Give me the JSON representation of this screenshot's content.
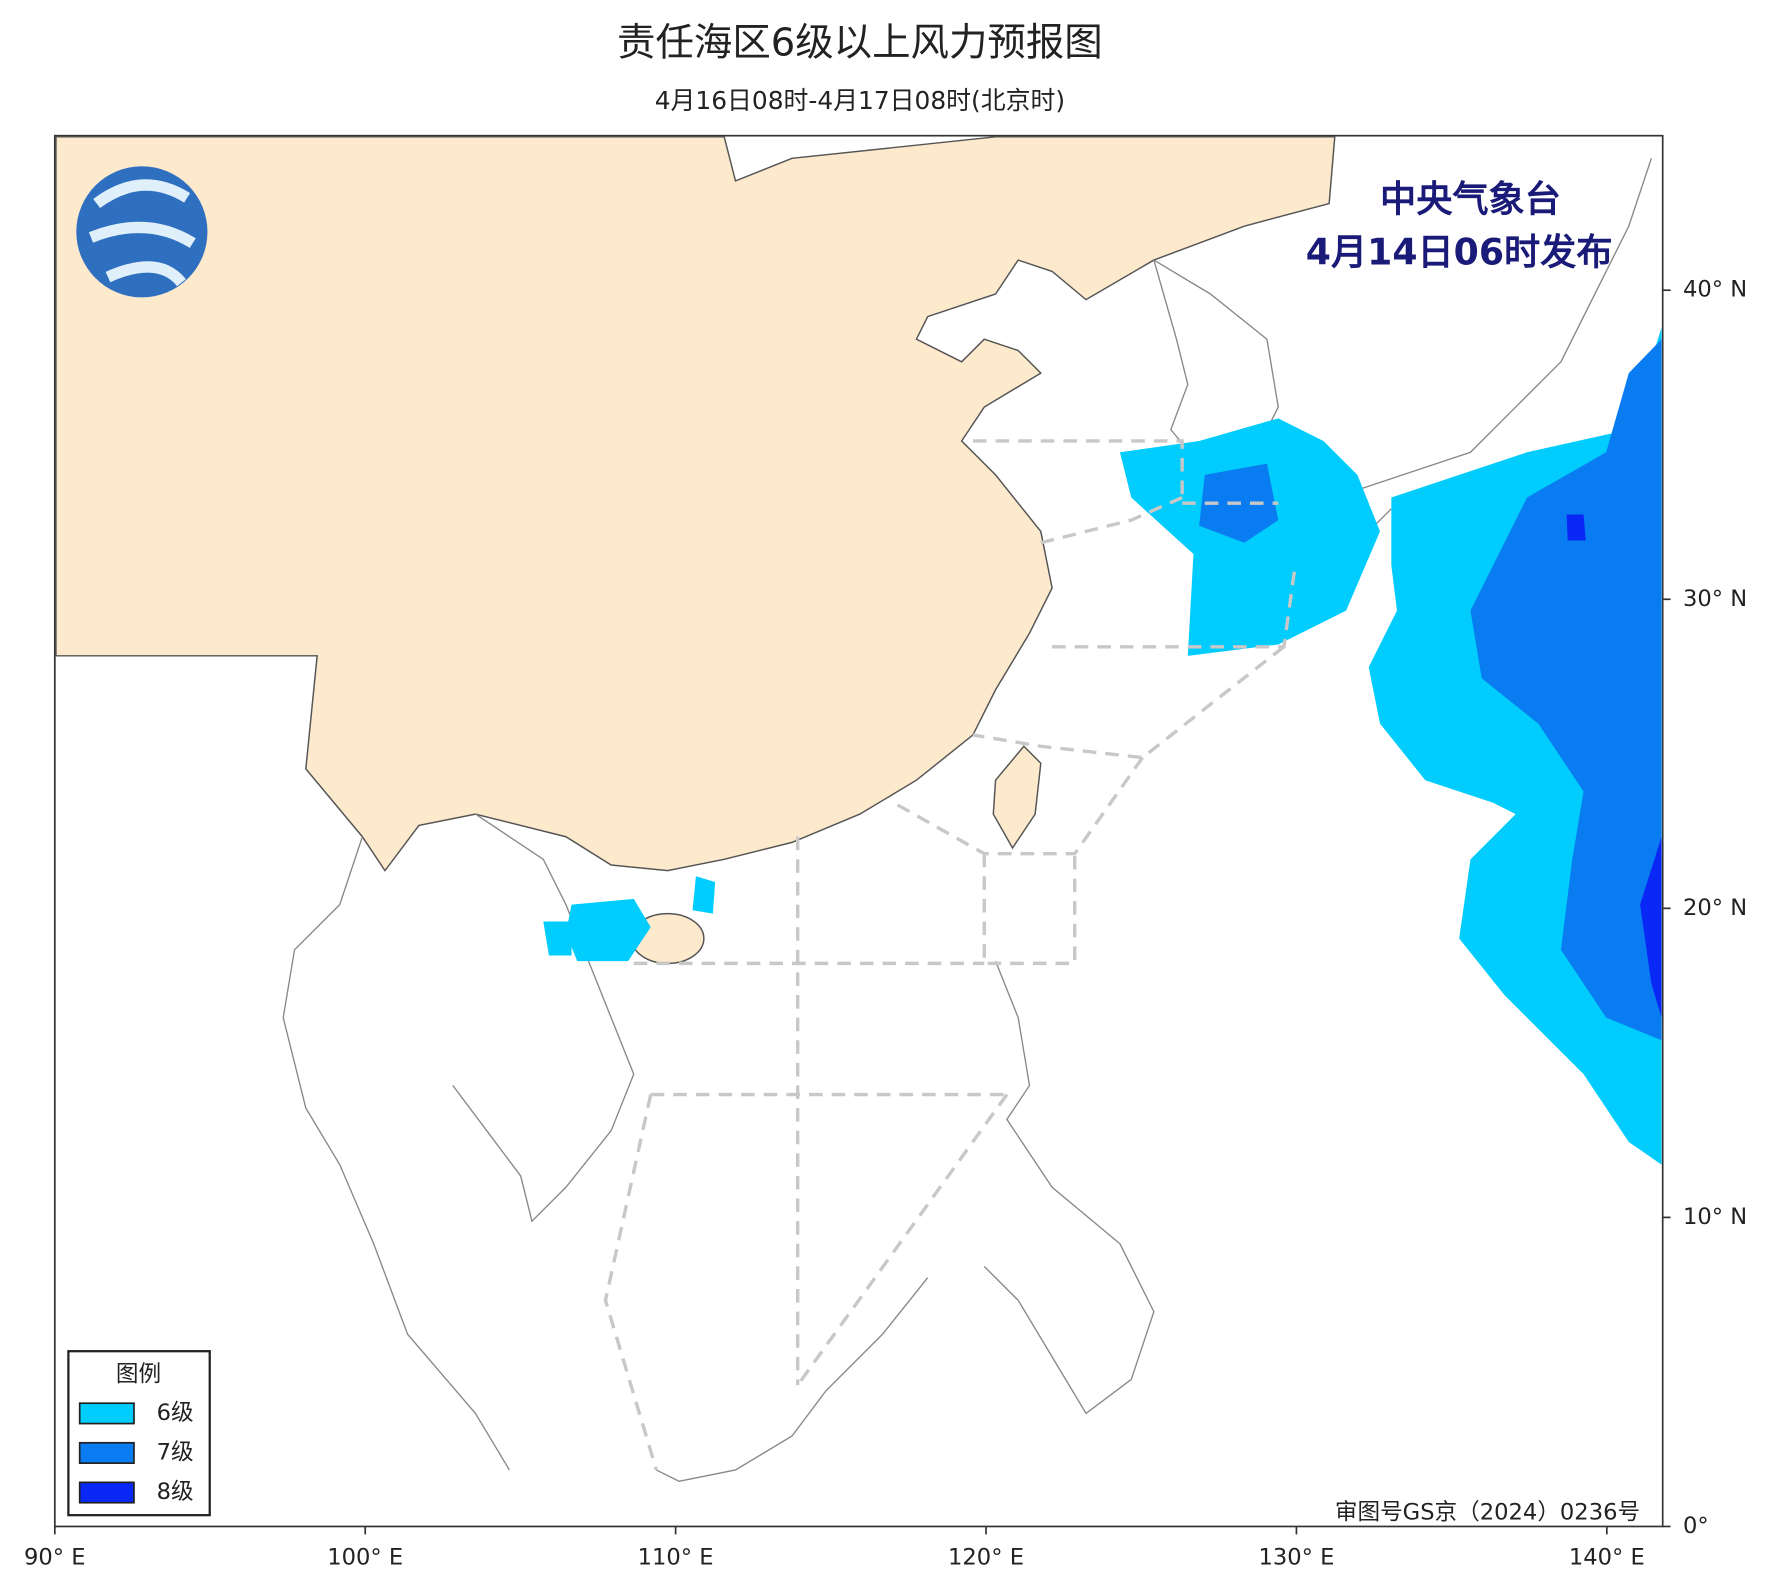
{
  "header": {
    "title": "责任海区6级以上风力预报图",
    "subtitle": "4月16日08时-4月17日08时(北京时)"
  },
  "issuer": {
    "name": "中央气象台",
    "time": "4月14日06时发布"
  },
  "legend": {
    "title": "图例",
    "items": [
      {
        "label": "6级",
        "color": "#00cdfd"
      },
      {
        "label": "7级",
        "color": "#0a7cf2"
      },
      {
        "label": "8级",
        "color": "#0a28f5"
      }
    ]
  },
  "map": {
    "xlim": [
      90,
      141.8
    ],
    "ylim": [
      0,
      45
    ],
    "xticks": [
      {
        "value": 90,
        "label": "90° E"
      },
      {
        "value": 100,
        "label": "100° E"
      },
      {
        "value": 110,
        "label": "110° E"
      },
      {
        "value": 120,
        "label": "120° E"
      },
      {
        "value": 130,
        "label": "130° E"
      },
      {
        "value": 140,
        "label": "140° E"
      }
    ],
    "yticks": [
      {
        "value": 0,
        "label": "0°"
      },
      {
        "value": 10,
        "label": "10° N"
      },
      {
        "value": 20,
        "label": "20° N"
      },
      {
        "value": 30,
        "label": "30° N"
      },
      {
        "value": 40,
        "label": "40° N"
      }
    ]
  },
  "approval": "审图号GS京（2024）0236号"
}
